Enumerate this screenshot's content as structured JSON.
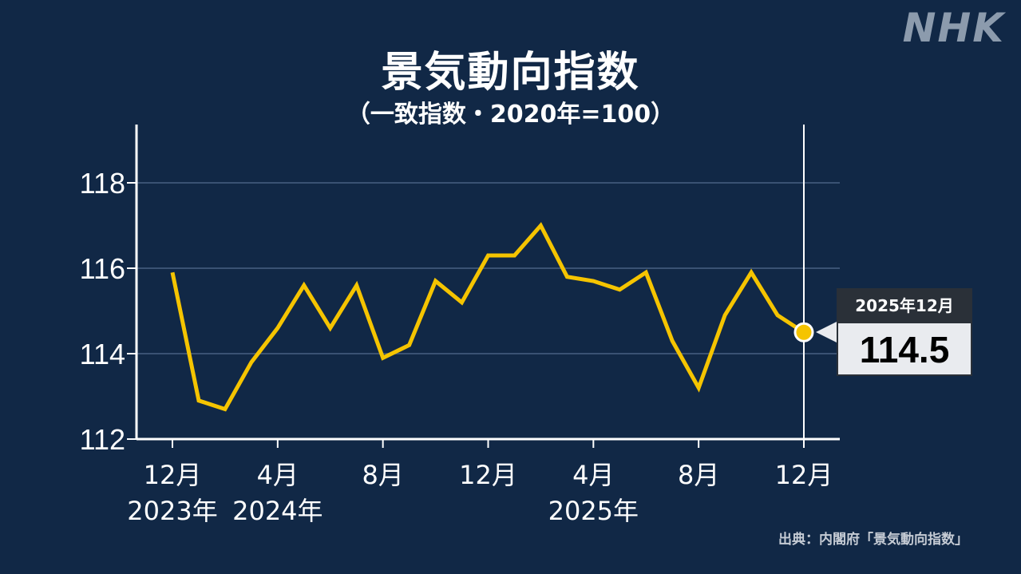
{
  "header": {
    "title": "景気動向指数",
    "subtitle": "（一致指数・2020年=100）",
    "logo": "NHK"
  },
  "callout": {
    "date": "2025年12月",
    "value": "114.5"
  },
  "source": "出典：内閣府「景気動向指数」",
  "colors": {
    "background": "#112846",
    "line": "#f5c400",
    "axis": "#ffffff",
    "grid": "#3a5273",
    "logo": "#8c9bad"
  },
  "chart_data": {
    "type": "line",
    "title": "景気動向指数",
    "subtitle": "（一致指数・2020年=100）",
    "xlabel": "",
    "ylabel": "",
    "ylim": [
      112,
      119.3
    ],
    "yticks": [
      112,
      114,
      116,
      118
    ],
    "grid": true,
    "x_tick_labels": [
      {
        "month": "12月",
        "year": "2023年",
        "index": 0
      },
      {
        "month": "4月",
        "year": "2024年",
        "index": 4
      },
      {
        "month": "8月",
        "year": "",
        "index": 8
      },
      {
        "month": "12月",
        "year": "",
        "index": 12
      },
      {
        "month": "4月",
        "year": "2025年",
        "index": 16
      },
      {
        "month": "8月",
        "year": "",
        "index": 20
      },
      {
        "month": "12月",
        "year": "",
        "index": 24
      }
    ],
    "x": [
      "2023-12",
      "2024-01",
      "2024-02",
      "2024-03",
      "2024-04",
      "2024-05",
      "2024-06",
      "2024-07",
      "2024-08",
      "2024-09",
      "2024-10",
      "2024-11",
      "2024-12",
      "2025-01",
      "2025-02",
      "2025-03",
      "2025-04",
      "2025-05",
      "2025-06",
      "2025-07",
      "2025-08",
      "2025-09",
      "2025-10",
      "2025-11",
      "2025-12"
    ],
    "series": [
      {
        "name": "一致指数",
        "values": [
          115.9,
          112.9,
          112.7,
          113.8,
          114.6,
          115.6,
          114.6,
          115.6,
          113.9,
          114.2,
          115.7,
          115.2,
          116.3,
          116.3,
          117.0,
          115.8,
          115.7,
          115.5,
          115.9,
          114.3,
          113.2,
          114.9,
          115.9,
          114.9,
          114.5
        ]
      }
    ],
    "highlight": {
      "x": "2025-12",
      "label": "2025年12月",
      "value": 114.5
    }
  }
}
